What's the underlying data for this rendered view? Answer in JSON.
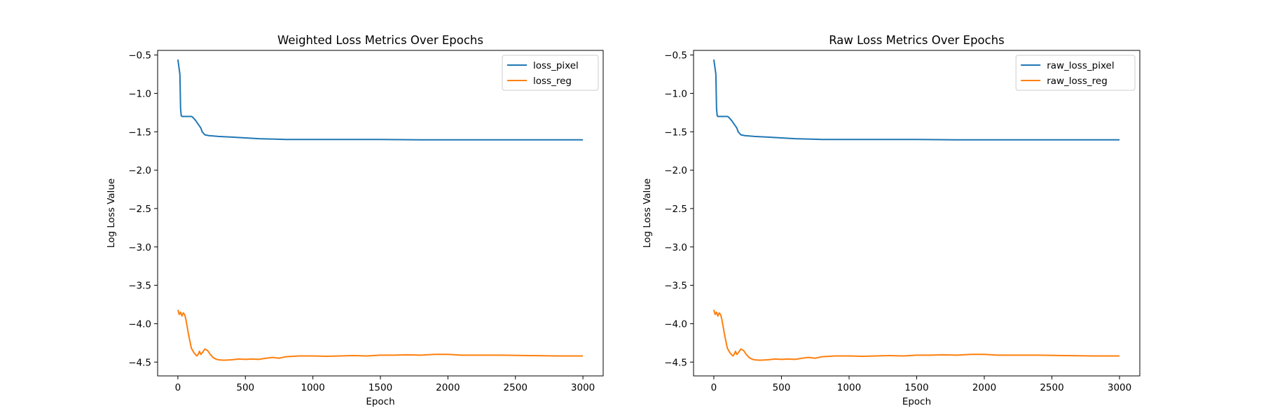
{
  "colors": {
    "series1": "#1f77b4",
    "series2": "#ff7f0e"
  },
  "chart_data": [
    {
      "type": "line",
      "title": "Weighted Loss Metrics Over Epochs",
      "xlabel": "Epoch",
      "ylabel": "Log Loss Value",
      "xlim": [
        -150,
        3150
      ],
      "ylim": [
        -4.68,
        -0.44
      ],
      "xticks": [
        0,
        500,
        1000,
        1500,
        2000,
        2500,
        3000
      ],
      "xtick_labels": [
        "0",
        "500",
        "1000",
        "1500",
        "2000",
        "2500",
        "3000"
      ],
      "yticks": [
        -0.5,
        -1.0,
        -1.5,
        -2.0,
        -2.5,
        -3.0,
        -3.5,
        -4.0,
        -4.5
      ],
      "ytick_labels": [
        "−0.5",
        "−1.0",
        "−1.5",
        "−2.0",
        "−2.5",
        "−3.0",
        "−3.5",
        "−4.0",
        "−4.5"
      ],
      "grid": false,
      "legend_position": "top-right",
      "series": [
        {
          "name": "loss_pixel",
          "x": [
            0,
            15,
            20,
            25,
            30,
            35,
            60,
            100,
            110,
            130,
            150,
            170,
            180,
            200,
            230,
            300,
            400,
            500,
            600,
            700,
            800,
            1000,
            1200,
            1500,
            1800,
            2000,
            2200,
            2500,
            2800,
            3000
          ],
          "y": [
            -0.56,
            -0.75,
            -1.2,
            -1.29,
            -1.3,
            -1.3,
            -1.3,
            -1.3,
            -1.31,
            -1.35,
            -1.4,
            -1.45,
            -1.5,
            -1.54,
            -1.55,
            -1.56,
            -1.57,
            -1.58,
            -1.59,
            -1.595,
            -1.6,
            -1.6,
            -1.6,
            -1.6,
            -1.605,
            -1.605,
            -1.605,
            -1.605,
            -1.605,
            -1.605
          ]
        },
        {
          "name": "loss_reg",
          "x": [
            0,
            10,
            20,
            30,
            40,
            50,
            60,
            80,
            100,
            120,
            140,
            150,
            160,
            170,
            180,
            200,
            220,
            240,
            260,
            280,
            300,
            330,
            350,
            400,
            450,
            500,
            550,
            600,
            650,
            700,
            750,
            800,
            900,
            1000,
            1100,
            1200,
            1300,
            1400,
            1500,
            1600,
            1700,
            1800,
            1900,
            2000,
            2100,
            2200,
            2400,
            2600,
            2800,
            3000
          ],
          "y": [
            -3.82,
            -3.88,
            -3.85,
            -3.9,
            -3.86,
            -3.88,
            -3.95,
            -4.15,
            -4.32,
            -4.38,
            -4.42,
            -4.4,
            -4.36,
            -4.4,
            -4.38,
            -4.33,
            -4.35,
            -4.4,
            -4.44,
            -4.46,
            -4.47,
            -4.475,
            -4.475,
            -4.47,
            -4.46,
            -4.465,
            -4.46,
            -4.465,
            -4.45,
            -4.44,
            -4.45,
            -4.43,
            -4.42,
            -4.42,
            -4.425,
            -4.42,
            -4.415,
            -4.42,
            -4.41,
            -4.41,
            -4.405,
            -4.41,
            -4.4,
            -4.4,
            -4.41,
            -4.41,
            -4.41,
            -4.415,
            -4.42,
            -4.42
          ]
        }
      ]
    },
    {
      "type": "line",
      "title": "Raw Loss Metrics Over Epochs",
      "xlabel": "Epoch",
      "ylabel": "Log Loss Value",
      "xlim": [
        -150,
        3150
      ],
      "ylim": [
        -4.68,
        -0.44
      ],
      "xticks": [
        0,
        500,
        1000,
        1500,
        2000,
        2500,
        3000
      ],
      "xtick_labels": [
        "0",
        "500",
        "1000",
        "1500",
        "2000",
        "2500",
        "3000"
      ],
      "yticks": [
        -0.5,
        -1.0,
        -1.5,
        -2.0,
        -2.5,
        -3.0,
        -3.5,
        -4.0,
        -4.5
      ],
      "ytick_labels": [
        "−0.5",
        "−1.0",
        "−1.5",
        "−2.0",
        "−2.5",
        "−3.0",
        "−3.5",
        "−4.0",
        "−4.5"
      ],
      "grid": false,
      "legend_position": "top-right",
      "series": [
        {
          "name": "raw_loss_pixel",
          "x": [
            0,
            15,
            20,
            25,
            30,
            35,
            60,
            100,
            110,
            130,
            150,
            170,
            180,
            200,
            230,
            300,
            400,
            500,
            600,
            700,
            800,
            1000,
            1200,
            1500,
            1800,
            2000,
            2200,
            2500,
            2800,
            3000
          ],
          "y": [
            -0.56,
            -0.75,
            -1.2,
            -1.29,
            -1.3,
            -1.3,
            -1.3,
            -1.3,
            -1.31,
            -1.35,
            -1.4,
            -1.45,
            -1.5,
            -1.54,
            -1.55,
            -1.56,
            -1.57,
            -1.58,
            -1.59,
            -1.595,
            -1.6,
            -1.6,
            -1.6,
            -1.6,
            -1.605,
            -1.605,
            -1.605,
            -1.605,
            -1.605,
            -1.605
          ]
        },
        {
          "name": "raw_loss_reg",
          "x": [
            0,
            10,
            20,
            30,
            40,
            50,
            60,
            80,
            100,
            120,
            140,
            150,
            160,
            170,
            180,
            200,
            220,
            240,
            260,
            280,
            300,
            330,
            350,
            400,
            450,
            500,
            550,
            600,
            650,
            700,
            750,
            800,
            900,
            1000,
            1100,
            1200,
            1300,
            1400,
            1500,
            1600,
            1700,
            1800,
            1900,
            2000,
            2100,
            2200,
            2400,
            2600,
            2800,
            3000
          ],
          "y": [
            -3.82,
            -3.88,
            -3.85,
            -3.9,
            -3.86,
            -3.88,
            -3.95,
            -4.15,
            -4.32,
            -4.38,
            -4.42,
            -4.4,
            -4.36,
            -4.4,
            -4.38,
            -4.33,
            -4.35,
            -4.4,
            -4.44,
            -4.46,
            -4.47,
            -4.475,
            -4.475,
            -4.47,
            -4.46,
            -4.465,
            -4.46,
            -4.465,
            -4.45,
            -4.44,
            -4.45,
            -4.43,
            -4.42,
            -4.42,
            -4.425,
            -4.42,
            -4.415,
            -4.42,
            -4.41,
            -4.41,
            -4.405,
            -4.41,
            -4.4,
            -4.4,
            -4.41,
            -4.41,
            -4.41,
            -4.415,
            -4.42,
            -4.42
          ]
        }
      ]
    }
  ]
}
